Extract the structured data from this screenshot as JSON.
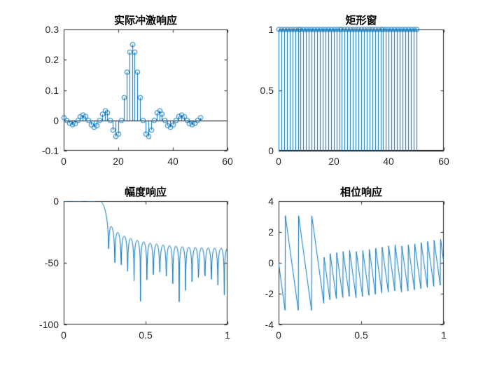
{
  "figure": {
    "background": "#ffffff",
    "colors": {
      "series": "#0072BD",
      "axis": "#262626",
      "stem_baseline": "#000000",
      "tick_label": "#262626",
      "title": "#000000"
    }
  },
  "chart_data": [
    {
      "type": "stem",
      "title": "实际冲激响应",
      "x_start": 0,
      "values": [
        0.009,
        0,
        -0.00979,
        -0.01447,
        -0.01072,
        0,
        0.01185,
        0.01768,
        0.01324,
        0,
        -0.01501,
        -0.02274,
        -0.01731,
        0,
        0.02046,
        0.03183,
        0.02501,
        0,
        -0.03215,
        -0.05305,
        -0.04502,
        0,
        0.07503,
        0.15915,
        0.22508,
        0.25,
        0.22508,
        0.15915,
        0.07503,
        0,
        -0.04502,
        -0.05305,
        -0.03215,
        0,
        0.02501,
        0.03183,
        0.02046,
        0,
        -0.01731,
        -0.02274,
        -0.01501,
        0,
        0.01324,
        0.01768,
        0.01185,
        0,
        -0.01072,
        -0.01447,
        -0.00979,
        0,
        0.009
      ],
      "baseline": 0,
      "xlim": [
        0,
        60
      ],
      "ylim": [
        -0.1,
        0.3
      ],
      "xticks": [
        0,
        20,
        40,
        60
      ],
      "xtick_labels": [
        "0",
        "20",
        "40",
        "60"
      ],
      "yticks": [
        -0.1,
        0,
        0.1,
        0.2,
        0.3
      ],
      "ytick_labels": [
        "-0.1",
        "0",
        "0.1",
        "0.2",
        "0.3"
      ],
      "grid": false,
      "legend": null
    },
    {
      "type": "stem",
      "title": "矩形窗",
      "x_start": 0,
      "values": [
        1,
        1,
        1,
        1,
        1,
        1,
        1,
        1,
        1,
        1,
        1,
        1,
        1,
        1,
        1,
        1,
        1,
        1,
        1,
        1,
        1,
        1,
        1,
        1,
        1,
        1,
        1,
        1,
        1,
        1,
        1,
        1,
        1,
        1,
        1,
        1,
        1,
        1,
        1,
        1,
        1,
        1,
        1,
        1,
        1,
        1,
        1,
        1,
        1,
        1,
        1
      ],
      "baseline": 0,
      "xlim": [
        0,
        60
      ],
      "ylim": [
        0,
        1
      ],
      "xticks": [
        0,
        20,
        40,
        60
      ],
      "xtick_labels": [
        "0",
        "20",
        "40",
        "60"
      ],
      "yticks": [
        0,
        0.5,
        1
      ],
      "ytick_labels": [
        "0",
        "0.5",
        "1"
      ],
      "grid": false,
      "legend": null
    },
    {
      "type": "line",
      "title": "幅度响应",
      "source": "dB_magnitude_of_dtft_of_impulse_response",
      "formula": "y = 20*log10(|sum_n h[n]*exp(-j*pi*x*n)|)",
      "num_points": 512,
      "xlim": [
        0,
        1
      ],
      "ylim": [
        -100,
        0
      ],
      "xticks": [
        0,
        0.5,
        1
      ],
      "xtick_labels": [
        "0",
        "0.5",
        "1"
      ],
      "yticks": [
        -100,
        -50,
        0
      ],
      "ytick_labels": [
        "-100",
        "-50",
        "0"
      ],
      "grid": false,
      "legend": null
    },
    {
      "type": "line",
      "title": "相位响应",
      "source": "phase_of_dtft_of_impulse_response",
      "formula": "y = angle(sum_n h[n]*exp(-j*pi*x*n)) wrapped to [-pi, pi]",
      "num_points": 512,
      "xlim": [
        0,
        1
      ],
      "ylim": [
        -4,
        4
      ],
      "xticks": [
        0,
        0.5,
        1
      ],
      "xtick_labels": [
        "0",
        "0.5",
        "1"
      ],
      "yticks": [
        -4,
        -2,
        0,
        2,
        4
      ],
      "ytick_labels": [
        "-4",
        "-2",
        "0",
        "2",
        "4"
      ],
      "grid": false,
      "legend": null
    }
  ]
}
